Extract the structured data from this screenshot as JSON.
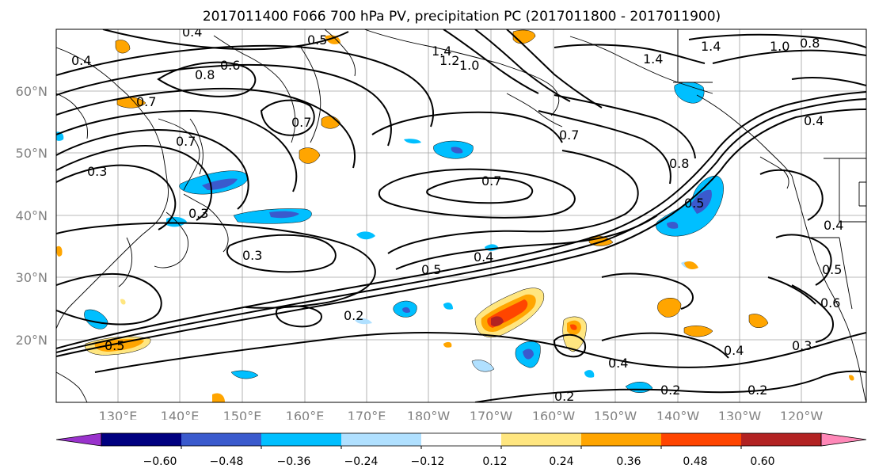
{
  "title": "2017011400 F066 700 hPa PV, precipitation PC (2017011800 - 2017011900)",
  "map": {
    "lat_labels": [
      "60°N",
      "50°N",
      "40°N",
      "30°N",
      "20°N"
    ],
    "lon_labels": [
      "130°E",
      "140°E",
      "150°E",
      "160°E",
      "170°E",
      "180°W",
      "170°W",
      "160°W",
      "150°W",
      "140°W",
      "130°W",
      "120°W"
    ],
    "contour_labels": [
      "0.4",
      "0.5",
      "1.4",
      "1.2",
      "1.0",
      "1.4",
      "1.4",
      "1.0",
      "0.8",
      "0.4",
      "0.6",
      "0.8",
      "0.7",
      "0.7",
      "0.7",
      "0.3",
      "0.3",
      "0.4",
      "0.7",
      "0.7",
      "0.8",
      "0.5",
      "0.4",
      "0.5",
      "0.3",
      "0.5",
      "0.4",
      "0.6",
      "0.2",
      "0.5",
      "0.4",
      "0.4",
      "0.3",
      "0.2",
      "0.2",
      "0.2"
    ],
    "colors": {
      "shading_positive": [
        "#ffe680",
        "#ffa500",
        "#ff4500",
        "#b22222",
        "#ff88b8"
      ],
      "shading_negative": [
        "#9932cc",
        "#000080",
        "#3a5acd",
        "#00bfff",
        "#b0e0ff"
      ],
      "contour_color": "#000000",
      "grid_color": "#a0a0a0"
    }
  },
  "colorbar": {
    "ticks": [
      "−0.60",
      "−0.48",
      "−0.36",
      "−0.24",
      "−0.12",
      "0.12",
      "0.24",
      "0.36",
      "0.48",
      "0.60"
    ],
    "colors": [
      "#9932cc",
      "#000080",
      "#3a5acd",
      "#00bfff",
      "#b0e0ff",
      "#ffffff",
      "#ffe680",
      "#ffa500",
      "#ff4500",
      "#b22222",
      "#ff88b8"
    ]
  }
}
